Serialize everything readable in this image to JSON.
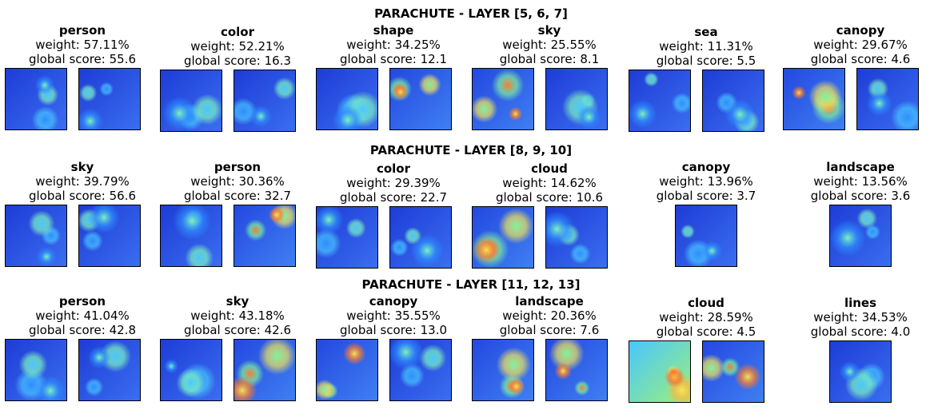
{
  "sections": [
    {
      "title": "PARACHUTE - LAYER [5, 6, 7]",
      "concepts": [
        {
          "name": "person",
          "weight": "weight: 57.11%",
          "score": "global score: 55.6",
          "thumbs": [
            "cool",
            "cool"
          ]
        },
        {
          "name": "color",
          "weight": "weight: 52.21%",
          "score": "global score: 16.3",
          "thumbs": [
            "cool",
            "cool"
          ]
        },
        {
          "name": "shape",
          "weight": "weight: 34.25%",
          "score": "global score: 12.1",
          "thumbs": [
            "cool",
            "warm"
          ]
        },
        {
          "name": "sky",
          "weight": "weight: 25.55%",
          "score": "global score: 8.1",
          "thumbs": [
            "warm",
            "cool"
          ]
        },
        {
          "name": "sea",
          "weight": "weight: 11.31%",
          "score": "global score: 5.5",
          "thumbs": [
            "cool",
            "cool"
          ]
        },
        {
          "name": "canopy",
          "weight": "weight: 29.67%",
          "score": "global score: 4.6",
          "thumbs": [
            "warm",
            "cool"
          ]
        }
      ]
    },
    {
      "title": "PARACHUTE - LAYER [8, 9, 10]",
      "concepts": [
        {
          "name": "sky",
          "weight": "weight: 39.79%",
          "score": "global score: 56.6",
          "thumbs": [
            "cool",
            "cool"
          ]
        },
        {
          "name": "person",
          "weight": "weight: 30.36%",
          "score": "global score: 32.7",
          "thumbs": [
            "cool",
            "warm"
          ]
        },
        {
          "name": "color",
          "weight": "weight: 29.39%",
          "score": "global score: 22.7",
          "thumbs": [
            "cool",
            "cool"
          ]
        },
        {
          "name": "cloud",
          "weight": "weight: 14.62%",
          "score": "global score: 10.6",
          "thumbs": [
            "warm",
            "cool"
          ]
        },
        {
          "name": "canopy",
          "weight": "weight: 13.96%",
          "score": "global score: 3.7",
          "thumbs": [
            "cool"
          ]
        },
        {
          "name": "landscape",
          "weight": "weight: 13.56%",
          "score": "global score: 3.6",
          "thumbs": [
            "cool"
          ]
        }
      ]
    },
    {
      "title": "PARACHUTE - LAYER [11, 12, 13]",
      "concepts": [
        {
          "name": "person",
          "weight": "weight: 41.04%",
          "score": "global score: 42.8",
          "thumbs": [
            "cool",
            "cool"
          ]
        },
        {
          "name": "sky",
          "weight": "weight: 43.18%",
          "score": "global score: 42.6",
          "thumbs": [
            "cool",
            "warm"
          ]
        },
        {
          "name": "canopy",
          "weight": "weight: 35.55%",
          "score": "global score: 13.0",
          "thumbs": [
            "warm",
            "cool"
          ]
        },
        {
          "name": "landscape",
          "weight": "weight: 20.36%",
          "score": "global score: 7.6",
          "thumbs": [
            "warm",
            "warm"
          ]
        },
        {
          "name": "cloud",
          "weight": "weight: 28.59%",
          "score": "global score: 4.5",
          "thumbs": [
            "hot",
            "warm"
          ]
        },
        {
          "name": "lines",
          "weight": "weight: 34.53%",
          "score": "global score: 4.0",
          "thumbs": [
            "cool"
          ]
        }
      ]
    }
  ]
}
